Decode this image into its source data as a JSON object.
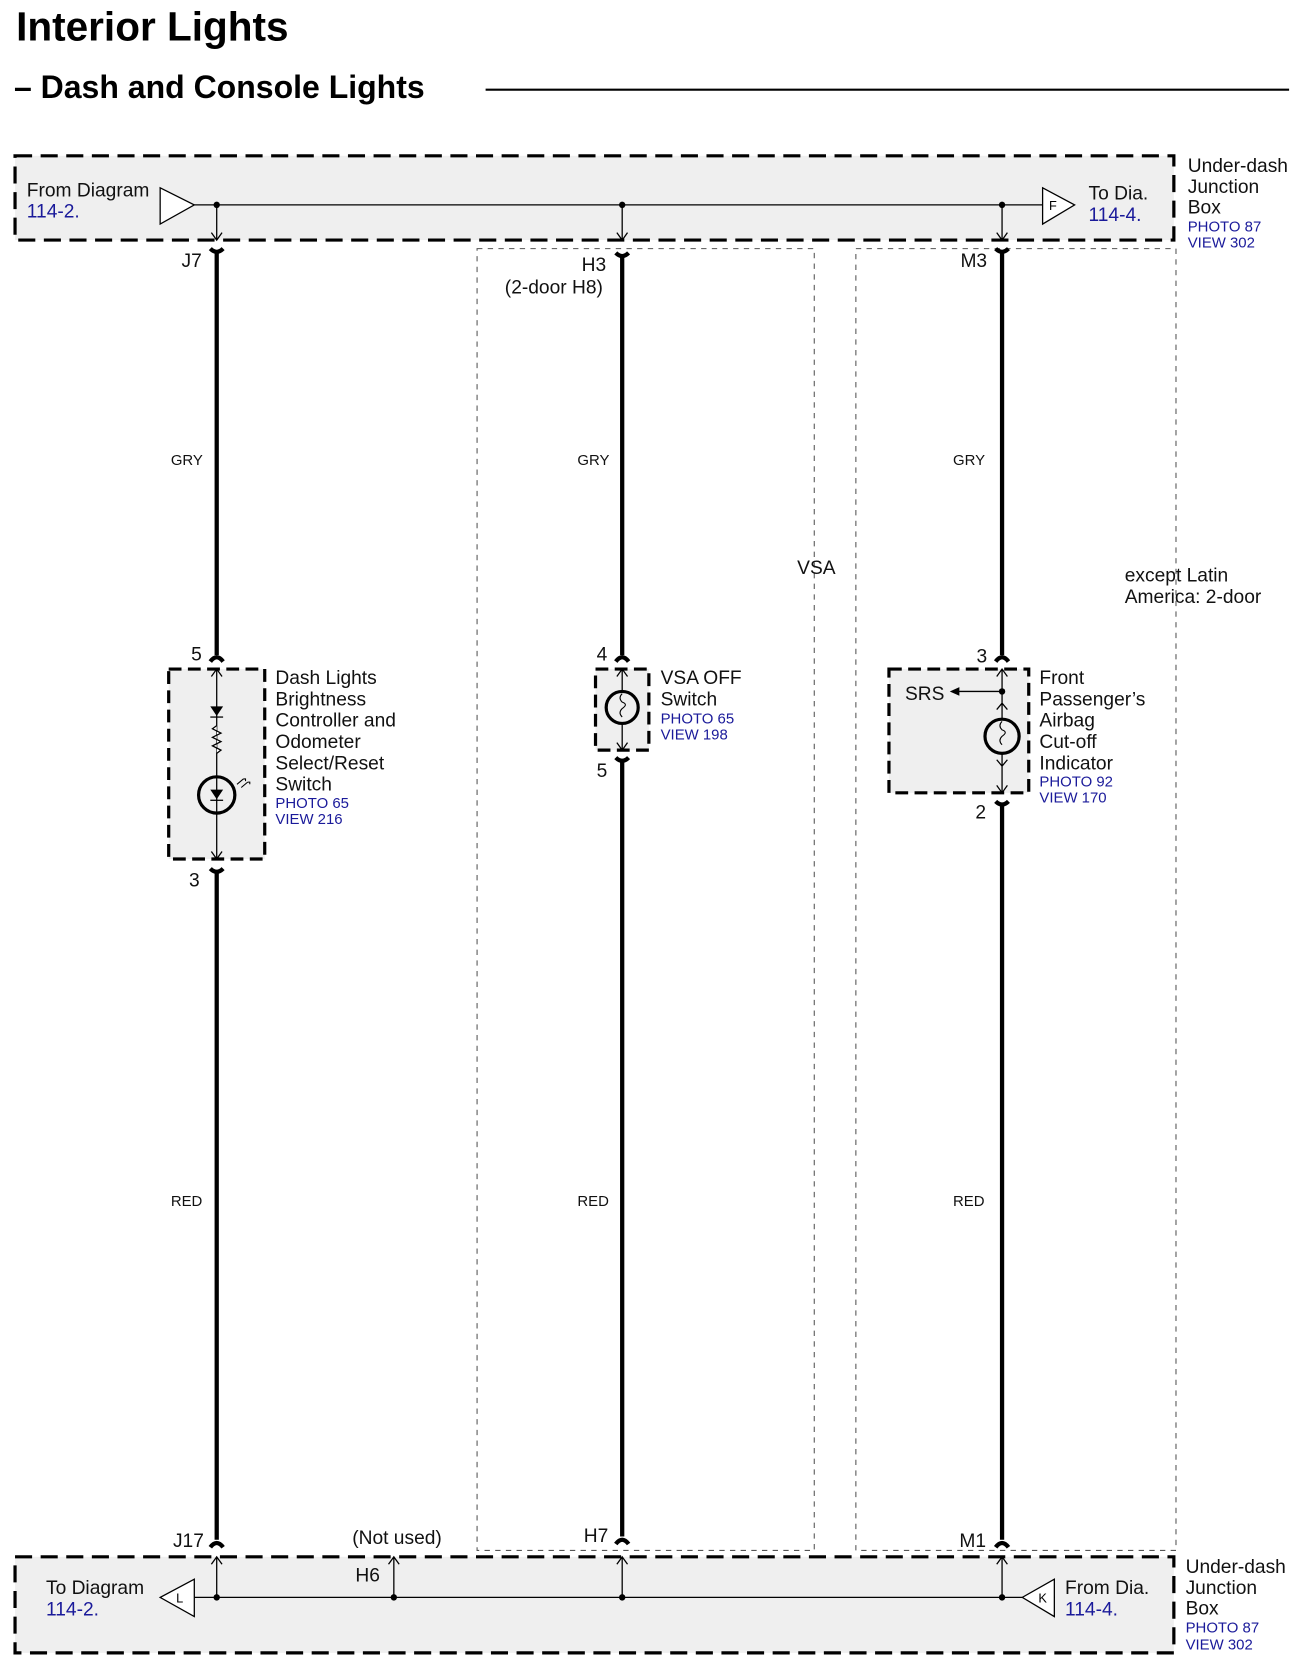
{
  "title": "Interior Lights",
  "subtitle": "– Dash and Console Lights",
  "top_junction_box": {
    "lines": [
      "Under-dash",
      "Junction",
      "Box"
    ],
    "photo": "PHOTO 87",
    "view": "VIEW 302",
    "from_label": "From Diagram",
    "from_ref": "114-2.",
    "to_label": "To Dia.",
    "to_ref": "114-4.",
    "to_connector": "F"
  },
  "bottom_junction_box": {
    "lines": [
      "Under-dash",
      "Junction",
      "Box"
    ],
    "photo": "PHOTO 87",
    "view": "VIEW 302",
    "to_label": "To Diagram",
    "to_ref": "114-2.",
    "to_connector": "L",
    "from_label": "From Dia.",
    "from_ref": "114-4.",
    "from_connector": "K",
    "unused_terminal": "H6",
    "unused_note": "(Not used)"
  },
  "circuits": [
    {
      "top_terminal": "J7",
      "bottom_terminal": "J17",
      "top_wire": "GRY",
      "bottom_wire": "RED",
      "pin_in": "5",
      "pin_out": "3",
      "component": [
        "Dash Lights",
        "Brightness",
        "Controller and",
        "Odometer",
        "Select/Reset",
        "Switch"
      ],
      "photo": "PHOTO 65",
      "view": "VIEW 216"
    },
    {
      "top_terminal": "H3",
      "top_terminal_note": "(2-door H8)",
      "bottom_terminal": "H7",
      "top_wire": "GRY",
      "bottom_wire": "RED",
      "pin_in": "4",
      "pin_out": "5",
      "component": [
        "VSA OFF",
        "Switch"
      ],
      "photo": "PHOTO 65",
      "view": "VIEW 198",
      "option_label": "VSA"
    },
    {
      "top_terminal": "M3",
      "bottom_terminal": "M1",
      "top_wire": "GRY",
      "bottom_wire": "RED",
      "pin_in": "3",
      "pin_out": "2",
      "component": [
        "Front",
        "Passenger’s",
        "Airbag",
        "Cut-off",
        "Indicator"
      ],
      "photo": "PHOTO 92",
      "view": "VIEW 170",
      "branch_label": "SRS",
      "option_label": [
        "except Latin",
        "America: 2-door"
      ]
    }
  ],
  "colors": {
    "reference_link": "#1a1a9a",
    "box_fill": "#efefef"
  }
}
